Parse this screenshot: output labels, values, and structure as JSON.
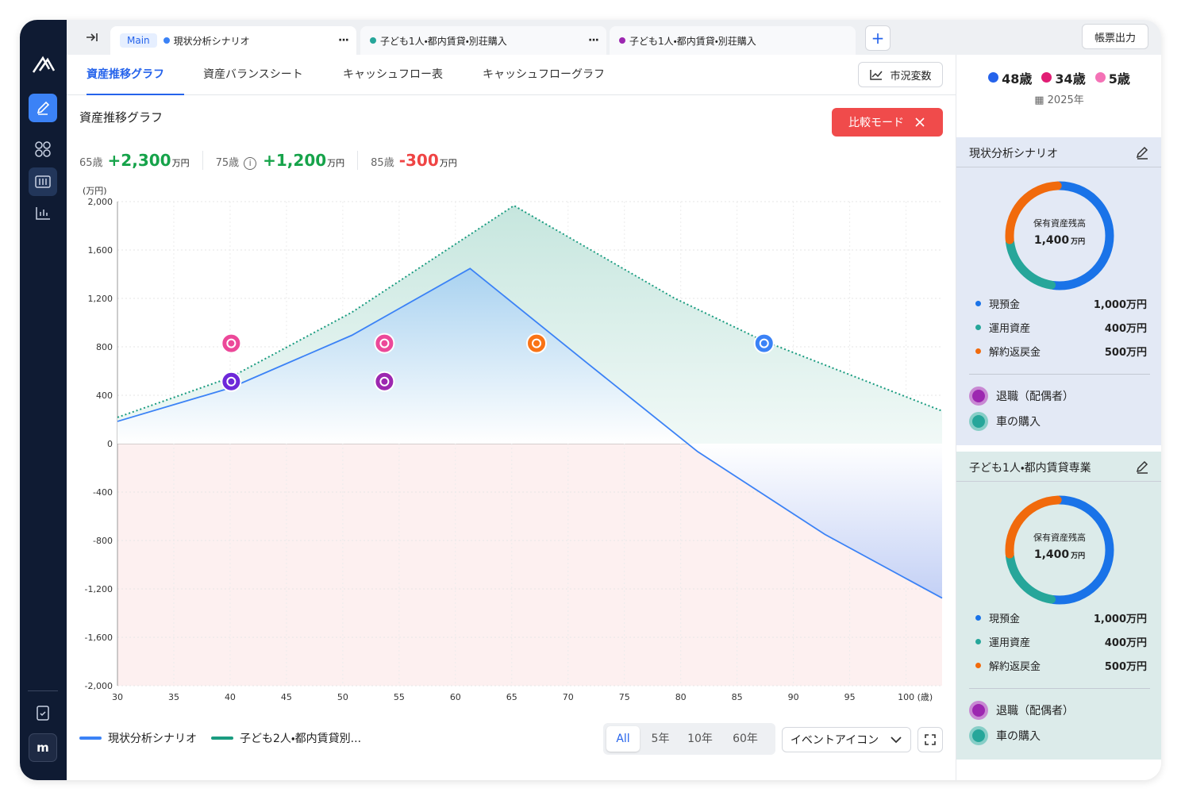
{
  "sidebar": {
    "avatar": "m"
  },
  "tabs": {
    "main_badge": "Main",
    "items": [
      {
        "name": "現状分析シナリオ",
        "color": "#3b82f6"
      },
      {
        "name": "子ども1人・都内賃貸・別荘購入",
        "color": "#26a69a"
      },
      {
        "name": "子ども1人・都内賃貸・別荘購入",
        "color": "#9c27b0"
      }
    ],
    "export_button": "帳票出力"
  },
  "subtabs": {
    "items": [
      "資産推移グラフ",
      "資産バランスシート",
      "キャッシュフロー表",
      "キャッシュフローグラフ"
    ],
    "market_button": "市況変数"
  },
  "panel": {
    "title": "資産推移グラフ",
    "compare_button": "比較モード",
    "stats": [
      {
        "age": "65歳",
        "value": "+2,300",
        "unit": "万円",
        "color": "#16a34a"
      },
      {
        "age": "75歳",
        "value": "+1,200",
        "unit": "万円",
        "color": "#16a34a"
      },
      {
        "age": "85歳",
        "value": "-300",
        "unit": "万円",
        "color": "#ef4444"
      }
    ]
  },
  "chart_data": {
    "type": "line",
    "y_unit": "(万円)",
    "x_unit": "(歳)",
    "xlim": [
      30,
      103.2
    ],
    "xticks": [
      30,
      35,
      40,
      45,
      50,
      55,
      60,
      65,
      70,
      75,
      80,
      85,
      90,
      95,
      100
    ],
    "ylim": [
      -2000,
      2000
    ],
    "yticks": [
      {
        "value": 2000,
        "label": "2,000"
      },
      {
        "value": 1600,
        "label": "1,600"
      },
      {
        "value": 1200,
        "label": "1,200"
      },
      800,
      400,
      0,
      -400,
      -800,
      {
        "value": -1200,
        "label": "-1,200"
      },
      {
        "value": -1600,
        "label": "-1,600"
      },
      {
        "value": -2000,
        "label": "-2,000"
      }
    ],
    "grid": true,
    "series": [
      {
        "name": "現状分析シナリオ",
        "color": "#3b82f6",
        "style": "solid",
        "x": [
          30,
          40,
          50.8,
          61.3,
          71.8,
          81.5,
          92.8,
          103.2
        ],
        "values": [
          184,
          460,
          895,
          1447,
          658,
          -66,
          -750,
          -1276
        ]
      },
      {
        "name": "子ども2人・都内賃貸別...",
        "color": "#1a9c80",
        "style": "dotted",
        "x": [
          30,
          40,
          50.8,
          65.2,
          79.4,
          87.2,
          103.2
        ],
        "values": [
          217,
          546,
          1085,
          1967,
          1204,
          855,
          270
        ]
      }
    ],
    "events": [
      {
        "x": 40.1,
        "y": 829,
        "color": "#ec4899"
      },
      {
        "x": 40.1,
        "y": 513,
        "color": "#6d28d9"
      },
      {
        "x": 53.7,
        "y": 829,
        "color": "#ec4899"
      },
      {
        "x": 53.7,
        "y": 513,
        "color": "#9c27b0"
      },
      {
        "x": 67.2,
        "y": 829,
        "color": "#f97316"
      },
      {
        "x": 87.4,
        "y": 829,
        "color": "#3b82f6"
      }
    ]
  },
  "controls": {
    "ranges": [
      "All",
      "5年",
      "10年",
      "60年"
    ],
    "event_dropdown": "イベントアイコン"
  },
  "family": {
    "members": [
      {
        "age": "48歳",
        "color": "#2563eb"
      },
      {
        "age": "34歳",
        "color": "#e11d74"
      },
      {
        "age": "5歳",
        "color": "#f472b6"
      }
    ],
    "year": "2025年"
  },
  "scenarios": [
    {
      "title": "現状分析シナリオ",
      "background": "#e3e9f5",
      "donut_label": "保有資産残高",
      "total": "1,400",
      "total_unit": "万円",
      "items": [
        {
          "label": "現預金",
          "value": 1000,
          "value_label": "1,000万円",
          "color": "#1a73e8"
        },
        {
          "label": "運用資産",
          "value": 400,
          "value_label": "400万円",
          "color": "#26a69a"
        },
        {
          "label": "解約返戻金",
          "value": 500,
          "value_label": "500万円",
          "color": "#f16a0c"
        }
      ],
      "events": [
        {
          "label": "退職（配偶者）",
          "color": "#9c27b0"
        },
        {
          "label": "車の購入",
          "color": "#26a69a"
        }
      ]
    },
    {
      "title": "子ども1人・都内賃貸専業",
      "background": "#dcebea",
      "donut_label": "保有資産残高",
      "total": "1,400",
      "total_unit": "万円",
      "items": [
        {
          "label": "現預金",
          "value": 1000,
          "value_label": "1,000万円",
          "color": "#1a73e8"
        },
        {
          "label": "運用資産",
          "value": 400,
          "value_label": "400万円",
          "color": "#26a69a"
        },
        {
          "label": "解約返戻金",
          "value": 500,
          "value_label": "500万円",
          "color": "#f16a0c"
        }
      ],
      "events": [
        {
          "label": "退職（配偶者）",
          "color": "#9c27b0"
        },
        {
          "label": "車の購入",
          "color": "#26a69a"
        }
      ]
    }
  ]
}
